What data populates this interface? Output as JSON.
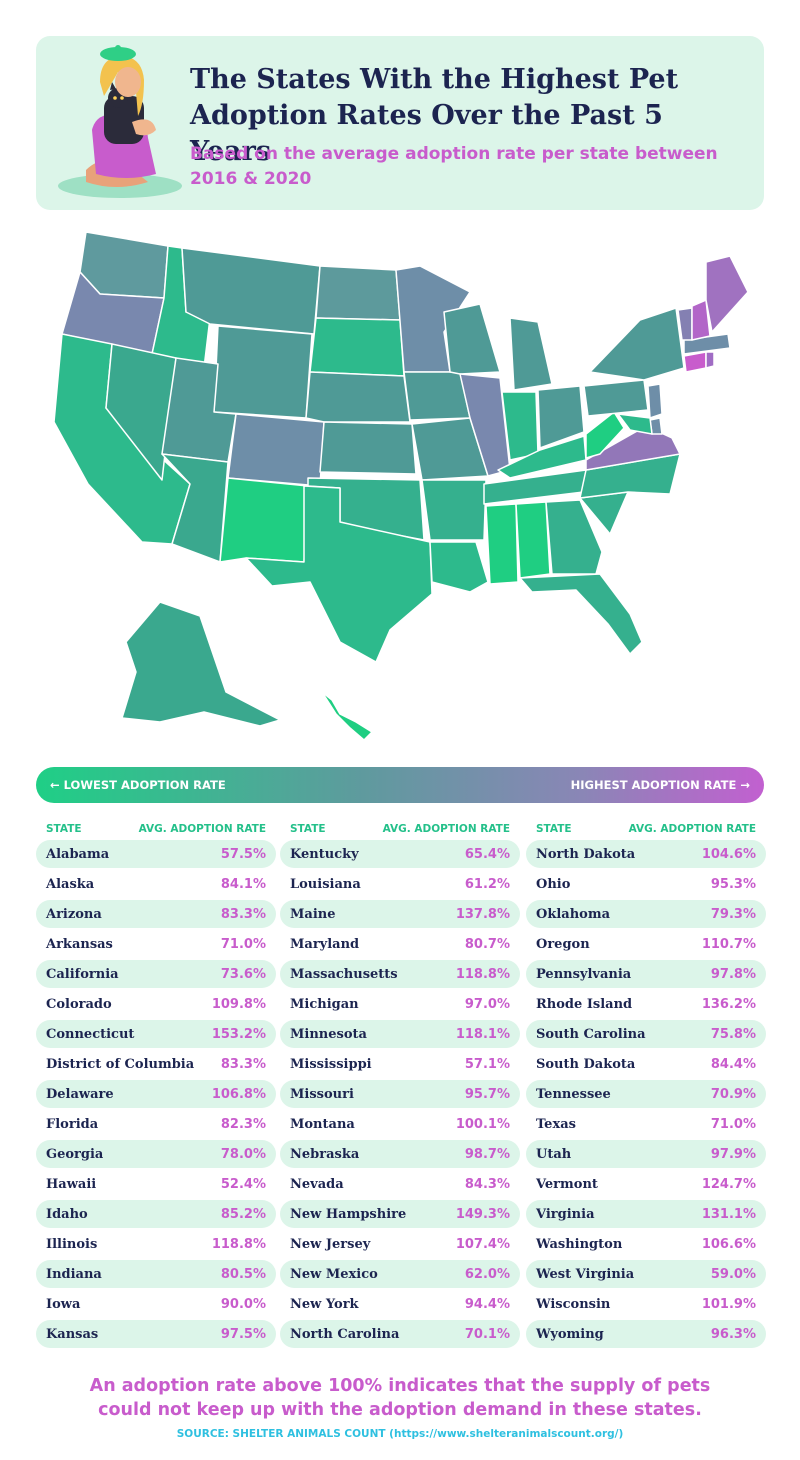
{
  "header": {
    "title": "The States With the Highest Pet Adoption Rates Over the Past 5 Years",
    "subtitle": "Based on the average adoption rate per state between 2016 & 2020"
  },
  "legend": {
    "low_label": "← LOWEST ADOPTION RATE",
    "high_label": "HIGHEST ADOPTION RATE →",
    "low_color": "#1fcf86",
    "high_color": "#c260d0"
  },
  "table": {
    "col_state": "STATE",
    "col_rate": "AVG. ADOPTION RATE"
  },
  "chart_data": {
    "type": "table",
    "title": "The States With the Highest Pet Adoption Rates Over the Past 5 Years",
    "subtitle": "Based on the average adoption rate per state between 2016 & 2020",
    "columns": [
      "STATE",
      "AVG. ADOPTION RATE"
    ],
    "rows": [
      {
        "state": "Alabama",
        "rate": "57.5%"
      },
      {
        "state": "Alaska",
        "rate": "84.1%"
      },
      {
        "state": "Arizona",
        "rate": "83.3%"
      },
      {
        "state": "Arkansas",
        "rate": "71.0%"
      },
      {
        "state": "California",
        "rate": "73.6%"
      },
      {
        "state": "Colorado",
        "rate": "109.8%"
      },
      {
        "state": "Connecticut",
        "rate": "153.2%"
      },
      {
        "state": "District of Columbia",
        "rate": "83.3%"
      },
      {
        "state": "Delaware",
        "rate": "106.8%"
      },
      {
        "state": "Florida",
        "rate": "82.3%"
      },
      {
        "state": "Georgia",
        "rate": "78.0%"
      },
      {
        "state": "Hawaii",
        "rate": "52.4%"
      },
      {
        "state": "Idaho",
        "rate": "85.2%"
      },
      {
        "state": "Illinois",
        "rate": "118.8%"
      },
      {
        "state": "Indiana",
        "rate": "80.5%"
      },
      {
        "state": "Iowa",
        "rate": "90.0%"
      },
      {
        "state": "Kansas",
        "rate": "97.5%"
      },
      {
        "state": "Kentucky",
        "rate": "65.4%"
      },
      {
        "state": "Louisiana",
        "rate": "61.2%"
      },
      {
        "state": "Maine",
        "rate": "137.8%"
      },
      {
        "state": "Maryland",
        "rate": "80.7%"
      },
      {
        "state": "Massachusetts",
        "rate": "118.8%"
      },
      {
        "state": "Michigan",
        "rate": "97.0%"
      },
      {
        "state": "Minnesota",
        "rate": "118.1%"
      },
      {
        "state": "Mississippi",
        "rate": "57.1%"
      },
      {
        "state": "Missouri",
        "rate": "95.7%"
      },
      {
        "state": "Montana",
        "rate": "100.1%"
      },
      {
        "state": "Nebraska",
        "rate": "98.7%"
      },
      {
        "state": "Nevada",
        "rate": "84.3%"
      },
      {
        "state": "New Hampshire",
        "rate": "149.3%"
      },
      {
        "state": "New Jersey",
        "rate": "107.4%"
      },
      {
        "state": "New Mexico",
        "rate": "62.0%"
      },
      {
        "state": "New York",
        "rate": "94.4%"
      },
      {
        "state": "North Carolina",
        "rate": "70.1%"
      },
      {
        "state": "North Dakota",
        "rate": "104.6%"
      },
      {
        "state": "Ohio",
        "rate": "95.3%"
      },
      {
        "state": "Oklahoma",
        "rate": "79.3%"
      },
      {
        "state": "Oregon",
        "rate": "110.7%"
      },
      {
        "state": "Pennsylvania",
        "rate": "97.8%"
      },
      {
        "state": "Rhode Island",
        "rate": "136.2%"
      },
      {
        "state": "South Carolina",
        "rate": "75.8%"
      },
      {
        "state": "South Dakota",
        "rate": "84.4%"
      },
      {
        "state": "Tennessee",
        "rate": "70.9%"
      },
      {
        "state": "Texas",
        "rate": "71.0%"
      },
      {
        "state": "Utah",
        "rate": "97.9%"
      },
      {
        "state": "Vermont",
        "rate": "124.7%"
      },
      {
        "state": "Virginia",
        "rate": "131.1%"
      },
      {
        "state": "Washington",
        "rate": "106.6%"
      },
      {
        "state": "West Virginia",
        "rate": "59.0%"
      },
      {
        "state": "Wisconsin",
        "rate": "101.9%"
      },
      {
        "state": "Wyoming",
        "rate": "96.3%"
      }
    ]
  },
  "footnote": "An adoption rate above 100% indicates that the supply of pets could not keep up with the adoption demand in these states.",
  "source": "SOURCE: SHELTER ANIMALS COUNT (https://www.shelteranimalscount.org/)"
}
